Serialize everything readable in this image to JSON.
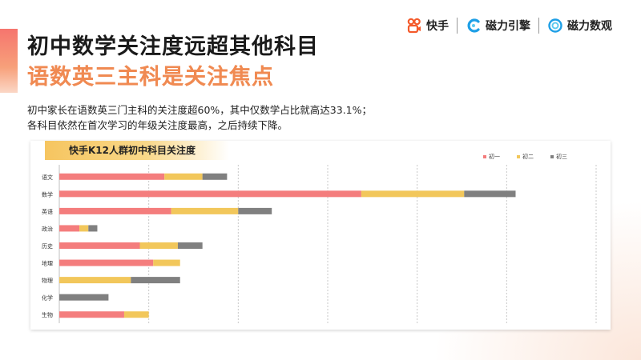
{
  "title_line1": "初中数学关注度远超其他科目",
  "title_line2": "语数英三主科是关注焦点",
  "description_line1": "初中家长在语数英三门主科的关注度超60%，其中仅数学占比就高达33.1%；",
  "description_line2": "各科目依然在首次学习的年级关注度最高，之后持续下降。",
  "logos": {
    "kuaishou": "快手",
    "cili_engine": "磁力引擎",
    "cili_shuguan": "磁力数观"
  },
  "colors": {
    "grade1": "#f47d7d",
    "grade2": "#f2c75b",
    "grade3": "#808080",
    "kuaishou": "#f45a2b",
    "cili": "#1e9fe6"
  },
  "chart_data": {
    "type": "bar",
    "orientation": "horizontal",
    "stacked": true,
    "title": "快手K12人群初中科目关注度",
    "categories": [
      "语文",
      "数学",
      "英语",
      "政治",
      "历史",
      "地理",
      "物理",
      "化学",
      "生物"
    ],
    "series": [
      {
        "name": "初一",
        "values": [
          4.7,
          13.5,
          5.0,
          0.9,
          3.6,
          4.2,
          0.0,
          0.0,
          2.9
        ]
      },
      {
        "name": "初二",
        "values": [
          1.7,
          4.6,
          3.0,
          0.4,
          1.7,
          1.2,
          3.2,
          0.0,
          1.1
        ]
      },
      {
        "name": "初三",
        "values": [
          1.1,
          2.3,
          1.5,
          0.4,
          1.1,
          0.0,
          2.2,
          2.2,
          0.0
        ]
      }
    ],
    "xlim": [
      0,
      24
    ],
    "grid": true,
    "legend": "top-right"
  }
}
